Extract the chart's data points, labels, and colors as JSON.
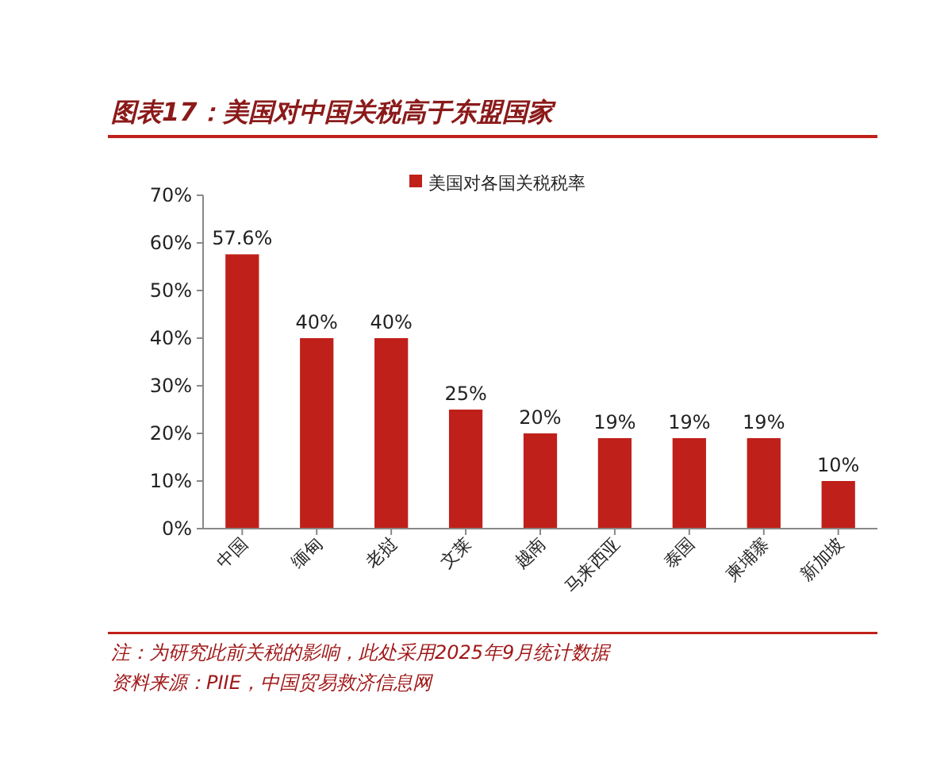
{
  "chart_data": {
    "type": "bar",
    "title": "图表17：美国对中国关税高于东盟国家",
    "categories": [
      "中国",
      "缅甸",
      "老挝",
      "文莱",
      "越南",
      "马来西亚",
      "泰国",
      "柬埔寨",
      "新加坡"
    ],
    "series": [
      {
        "name": "美国对各国关税税率",
        "color": "#c0201a",
        "values": [
          57.6,
          40,
          40,
          25,
          20,
          19,
          19,
          19,
          10
        ]
      }
    ],
    "value_labels": [
      "57.6%",
      "40%",
      "40%",
      "25%",
      "20%",
      "19%",
      "19%",
      "19%",
      "10%"
    ],
    "ylim": [
      0,
      70
    ],
    "yticks": [
      {
        "value": 0,
        "label": "0%"
      },
      {
        "value": 10,
        "label": "10%"
      },
      {
        "value": 20,
        "label": "20%"
      },
      {
        "value": 30,
        "label": "30%"
      },
      {
        "value": 40,
        "label": "40%"
      },
      {
        "value": 50,
        "label": "50%"
      },
      {
        "value": 60,
        "label": "60%"
      },
      {
        "value": 70,
        "label": "70%"
      }
    ],
    "legend": "top",
    "grid": false,
    "annotations": [
      "注：为研究此前关税的影响，此处采用2025年9月统计数据",
      "资料来源：PIIE，中国贸易救济信息网"
    ]
  }
}
